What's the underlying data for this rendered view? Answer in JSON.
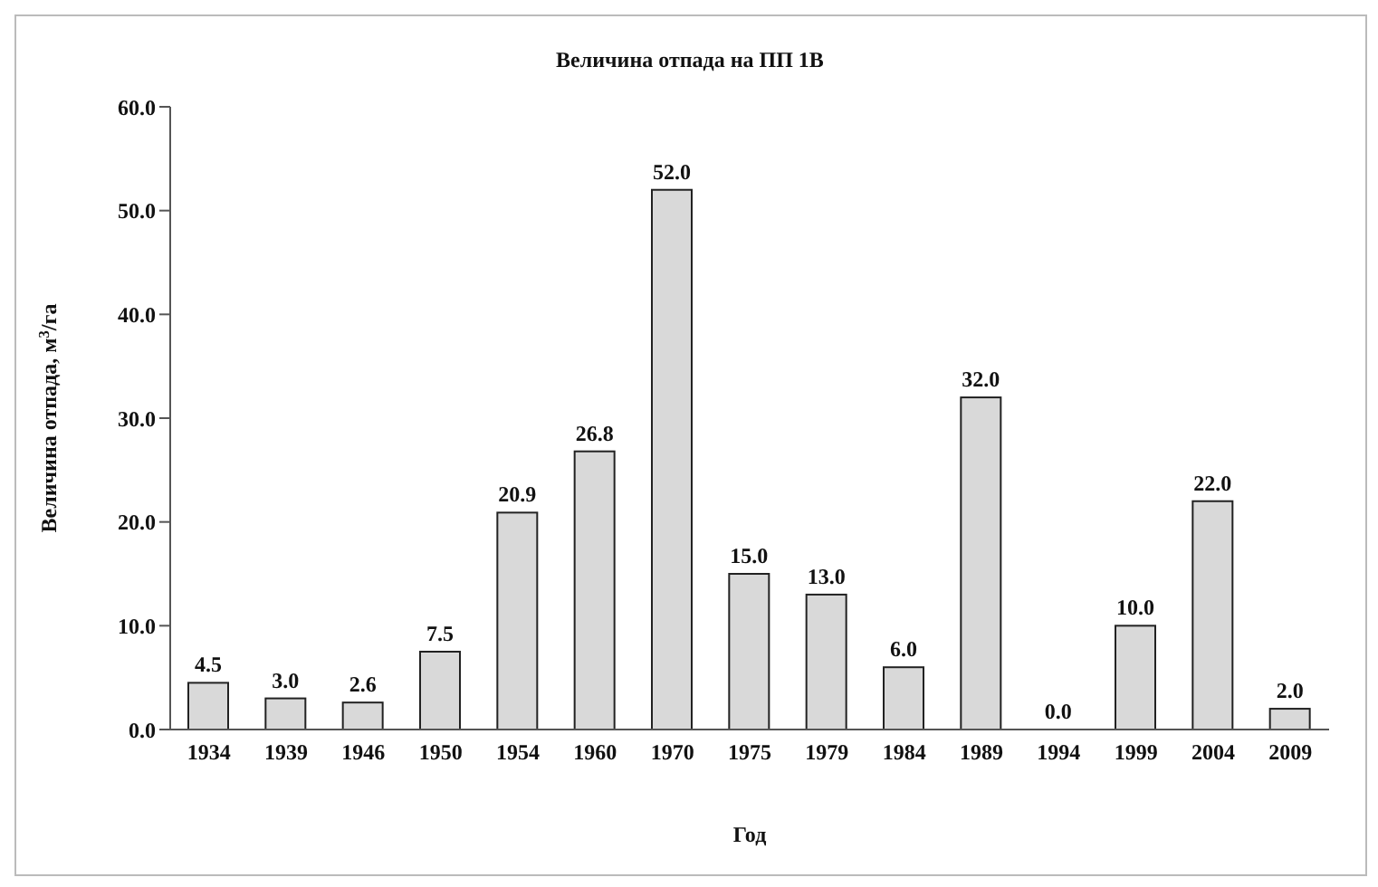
{
  "chart_data": {
    "type": "bar",
    "title": "Величина отпада на ПП 1В",
    "xlabel": "Год",
    "ylabel": "Величина отпада, м$^{3}$/га",
    "categories": [
      "1934",
      "1939",
      "1946",
      "1950",
      "1954",
      "1960",
      "1970",
      "1975",
      "1979",
      "1984",
      "1989",
      "1994",
      "1999",
      "2004",
      "2009"
    ],
    "values": [
      4.5,
      3.0,
      2.6,
      7.5,
      20.9,
      26.8,
      52.0,
      15.0,
      13.0,
      6.0,
      32.0,
      0.0,
      10.0,
      22.0,
      2.0
    ],
    "value_labels": [
      "4.5",
      "3.0",
      "2.6",
      "7.5",
      "20.9",
      "26.8",
      "52.0",
      "15.0",
      "13.0",
      "6.0",
      "32.0",
      "0.0",
      "10.0",
      "22.0",
      "2.0"
    ],
    "color": "#d9d9d9",
    "ylim": [
      0,
      60
    ],
    "yticks": [
      {
        "value": 0,
        "label": "0.0"
      },
      {
        "value": 10,
        "label": "10.0"
      },
      {
        "value": 20,
        "label": "20.0"
      },
      {
        "value": 30,
        "label": "30.0"
      },
      {
        "value": 40,
        "label": "40.0"
      },
      {
        "value": 50,
        "label": "50.0"
      },
      {
        "value": 60,
        "label": "60.0"
      }
    ],
    "grid": false,
    "legend": false
  }
}
